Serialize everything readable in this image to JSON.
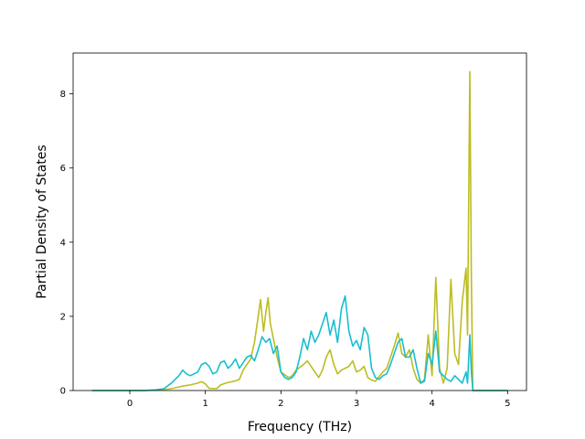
{
  "chart_data": {
    "type": "line",
    "title": "",
    "xlabel": "Frequency (THz)",
    "ylabel": "Partial Density of States",
    "xlim": [
      -0.75,
      5.25
    ],
    "ylim": [
      0,
      9.1
    ],
    "xticks": [
      0,
      1,
      2,
      3,
      4,
      5
    ],
    "yticks": [
      0,
      2,
      4,
      6,
      8
    ],
    "grid": false,
    "legend": "none",
    "series": [
      {
        "color": "#bcbd22",
        "points": [
          [
            -0.5,
            0
          ],
          [
            0.2,
            0
          ],
          [
            0.4,
            0.02
          ],
          [
            0.55,
            0.05
          ],
          [
            0.7,
            0.12
          ],
          [
            0.8,
            0.15
          ],
          [
            0.9,
            0.2
          ],
          [
            0.95,
            0.24
          ],
          [
            1.0,
            0.18
          ],
          [
            1.05,
            0.06
          ],
          [
            1.15,
            0.05
          ],
          [
            1.2,
            0.15
          ],
          [
            1.3,
            0.22
          ],
          [
            1.4,
            0.26
          ],
          [
            1.45,
            0.3
          ],
          [
            1.5,
            0.55
          ],
          [
            1.55,
            0.7
          ],
          [
            1.6,
            0.85
          ],
          [
            1.65,
            1.3
          ],
          [
            1.7,
            2.0
          ],
          [
            1.73,
            2.45
          ],
          [
            1.77,
            1.6
          ],
          [
            1.8,
            2.1
          ],
          [
            1.83,
            2.5
          ],
          [
            1.86,
            1.8
          ],
          [
            1.9,
            1.4
          ],
          [
            1.95,
            0.9
          ],
          [
            2.0,
            0.5
          ],
          [
            2.1,
            0.35
          ],
          [
            2.15,
            0.4
          ],
          [
            2.2,
            0.55
          ],
          [
            2.3,
            0.7
          ],
          [
            2.35,
            0.8
          ],
          [
            2.45,
            0.5
          ],
          [
            2.5,
            0.35
          ],
          [
            2.55,
            0.55
          ],
          [
            2.6,
            0.9
          ],
          [
            2.65,
            1.1
          ],
          [
            2.7,
            0.7
          ],
          [
            2.75,
            0.45
          ],
          [
            2.8,
            0.55
          ],
          [
            2.85,
            0.6
          ],
          [
            2.9,
            0.65
          ],
          [
            2.95,
            0.8
          ],
          [
            3.0,
            0.5
          ],
          [
            3.05,
            0.55
          ],
          [
            3.1,
            0.65
          ],
          [
            3.15,
            0.35
          ],
          [
            3.2,
            0.28
          ],
          [
            3.25,
            0.25
          ],
          [
            3.35,
            0.5
          ],
          [
            3.4,
            0.6
          ],
          [
            3.45,
            0.9
          ],
          [
            3.5,
            1.2
          ],
          [
            3.55,
            1.55
          ],
          [
            3.6,
            1.0
          ],
          [
            3.65,
            0.9
          ],
          [
            3.7,
            1.1
          ],
          [
            3.75,
            0.6
          ],
          [
            3.8,
            0.3
          ],
          [
            3.85,
            0.2
          ],
          [
            3.9,
            0.3
          ],
          [
            3.95,
            1.5
          ],
          [
            4.0,
            0.4
          ],
          [
            4.05,
            3.05
          ],
          [
            4.1,
            0.6
          ],
          [
            4.15,
            0.2
          ],
          [
            4.2,
            0.6
          ],
          [
            4.25,
            3.0
          ],
          [
            4.3,
            1.0
          ],
          [
            4.35,
            0.7
          ],
          [
            4.4,
            2.4
          ],
          [
            4.45,
            3.3
          ],
          [
            4.47,
            1.5
          ],
          [
            4.5,
            8.6
          ],
          [
            4.52,
            3.0
          ],
          [
            4.54,
            0
          ],
          [
            4.65,
            0
          ],
          [
            5.0,
            0
          ]
        ]
      },
      {
        "color": "#17becf",
        "points": [
          [
            -0.5,
            0
          ],
          [
            0.2,
            0
          ],
          [
            0.35,
            0.02
          ],
          [
            0.45,
            0.05
          ],
          [
            0.55,
            0.2
          ],
          [
            0.65,
            0.4
          ],
          [
            0.7,
            0.55
          ],
          [
            0.75,
            0.45
          ],
          [
            0.8,
            0.4
          ],
          [
            0.9,
            0.5
          ],
          [
            0.95,
            0.7
          ],
          [
            1.0,
            0.75
          ],
          [
            1.05,
            0.65
          ],
          [
            1.1,
            0.45
          ],
          [
            1.15,
            0.5
          ],
          [
            1.2,
            0.75
          ],
          [
            1.25,
            0.8
          ],
          [
            1.3,
            0.6
          ],
          [
            1.35,
            0.7
          ],
          [
            1.4,
            0.85
          ],
          [
            1.45,
            0.6
          ],
          [
            1.5,
            0.75
          ],
          [
            1.55,
            0.9
          ],
          [
            1.6,
            0.95
          ],
          [
            1.65,
            0.8
          ],
          [
            1.7,
            1.1
          ],
          [
            1.75,
            1.45
          ],
          [
            1.8,
            1.3
          ],
          [
            1.85,
            1.4
          ],
          [
            1.9,
            1.0
          ],
          [
            1.95,
            1.2
          ],
          [
            2.0,
            0.5
          ],
          [
            2.05,
            0.35
          ],
          [
            2.1,
            0.3
          ],
          [
            2.15,
            0.35
          ],
          [
            2.2,
            0.5
          ],
          [
            2.25,
            0.9
          ],
          [
            2.3,
            1.4
          ],
          [
            2.35,
            1.1
          ],
          [
            2.4,
            1.6
          ],
          [
            2.45,
            1.3
          ],
          [
            2.5,
            1.5
          ],
          [
            2.55,
            1.8
          ],
          [
            2.6,
            2.1
          ],
          [
            2.65,
            1.5
          ],
          [
            2.7,
            1.9
          ],
          [
            2.75,
            1.3
          ],
          [
            2.8,
            2.2
          ],
          [
            2.85,
            2.55
          ],
          [
            2.9,
            1.6
          ],
          [
            2.95,
            1.2
          ],
          [
            3.0,
            1.35
          ],
          [
            3.05,
            1.1
          ],
          [
            3.1,
            1.7
          ],
          [
            3.15,
            1.5
          ],
          [
            3.2,
            0.6
          ],
          [
            3.25,
            0.35
          ],
          [
            3.3,
            0.3
          ],
          [
            3.35,
            0.4
          ],
          [
            3.4,
            0.45
          ],
          [
            3.45,
            0.7
          ],
          [
            3.5,
            1.0
          ],
          [
            3.55,
            1.3
          ],
          [
            3.6,
            1.4
          ],
          [
            3.65,
            0.9
          ],
          [
            3.7,
            0.9
          ],
          [
            3.75,
            1.1
          ],
          [
            3.8,
            0.6
          ],
          [
            3.85,
            0.2
          ],
          [
            3.9,
            0.25
          ],
          [
            3.95,
            1.0
          ],
          [
            4.0,
            0.7
          ],
          [
            4.05,
            1.6
          ],
          [
            4.1,
            0.5
          ],
          [
            4.15,
            0.4
          ],
          [
            4.2,
            0.3
          ],
          [
            4.25,
            0.25
          ],
          [
            4.3,
            0.4
          ],
          [
            4.35,
            0.3
          ],
          [
            4.4,
            0.2
          ],
          [
            4.45,
            0.5
          ],
          [
            4.47,
            0.2
          ],
          [
            4.5,
            1.5
          ],
          [
            4.52,
            0.5
          ],
          [
            4.54,
            0
          ],
          [
            4.65,
            0
          ],
          [
            5.0,
            0
          ]
        ]
      }
    ]
  }
}
